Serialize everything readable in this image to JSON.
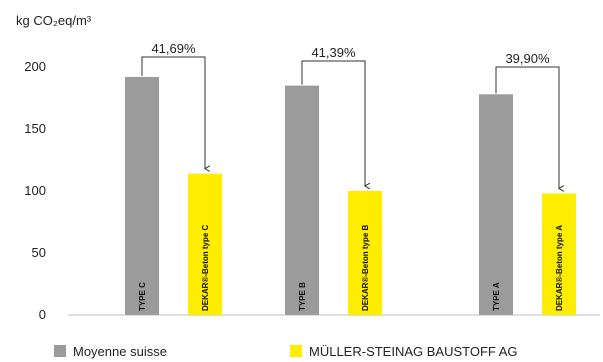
{
  "chart_data": {
    "type": "bar",
    "ylabel": "kg CO₂eq/m³",
    "ylim": [
      0,
      200
    ],
    "yticks": [
      0,
      50,
      100,
      150,
      200
    ],
    "grid": false,
    "legend_position": "bottom",
    "groups": [
      "C",
      "B",
      "A"
    ],
    "series": [
      {
        "name": "Moyenne suisse",
        "color": "#9b9b9b",
        "bar_labels": [
          "TYPE C",
          "TYPE B",
          "TYPE A"
        ],
        "values": [
          192,
          185,
          178
        ]
      },
      {
        "name": "MÜLLER-STEINAG BAUSTOFF AG",
        "color": "#ffed00",
        "bar_labels": [
          "DEKAR®-Beton type C",
          "DEKAR®-Beton type B",
          "DEKAR®-Beton type A"
        ],
        "values": [
          114,
          100,
          98
        ]
      }
    ],
    "annotations": [
      "41,69%",
      "41,39%",
      "39,90%"
    ]
  }
}
